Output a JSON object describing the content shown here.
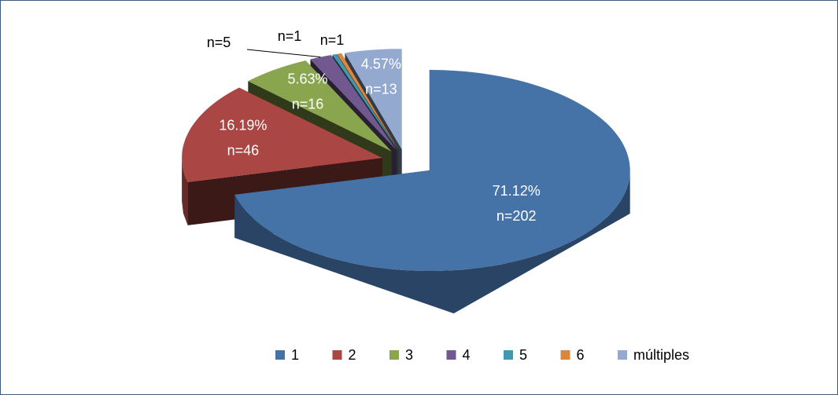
{
  "chart_data": {
    "type": "pie3d",
    "categories": [
      "1",
      "2",
      "3",
      "4",
      "5",
      "6",
      "múltiples"
    ],
    "values": [
      202,
      46,
      16,
      5,
      1,
      1,
      13
    ],
    "value_labels": [
      "n=202",
      "n=46",
      "n=16",
      "n=5",
      "n=1",
      "n=1",
      "n=13"
    ],
    "percent_labels": [
      "71.12%",
      "16.19%",
      "5.63%",
      null,
      null,
      null,
      "4.57%"
    ],
    "colors": [
      "#4572a7",
      "#aa4643",
      "#89a54e",
      "#71588f",
      "#4198af",
      "#db843d",
      "#93a9cf"
    ],
    "legend": "bottom"
  }
}
